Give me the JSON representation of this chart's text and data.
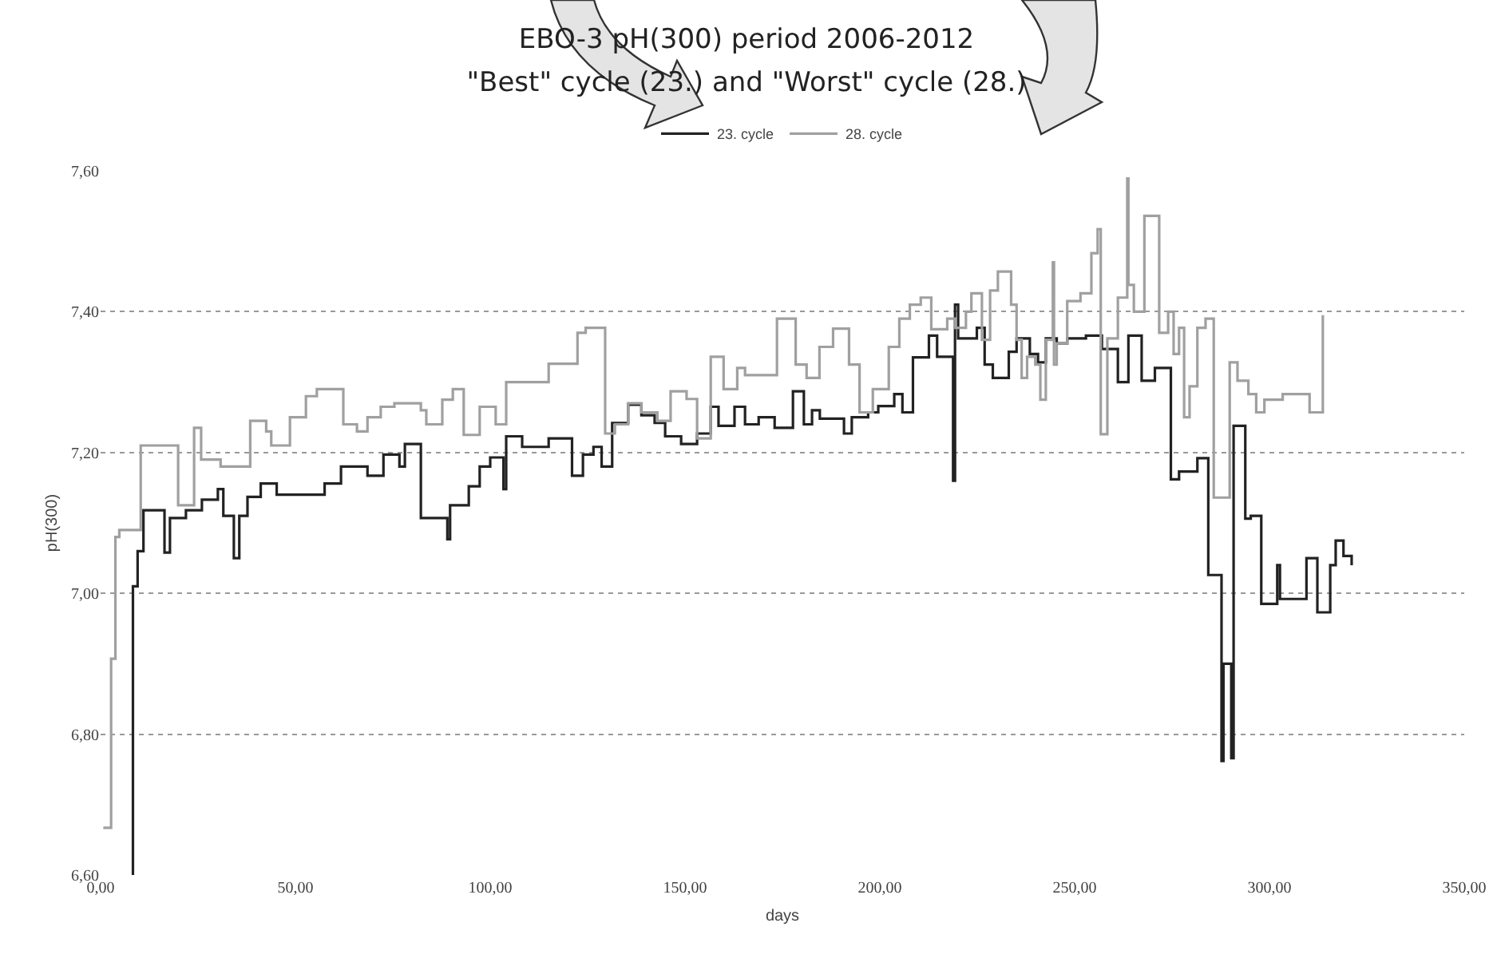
{
  "chart_data": {
    "type": "step",
    "title": "EBO-3  pH(300)  period 2006-2012",
    "subtitle": "\"Best\" cycle (23.) and \"Worst\" cycle (28.)",
    "xlabel": "days",
    "ylabel": "pH(300)",
    "xlim": [
      0,
      350
    ],
    "xticks": [
      {
        "value": 0,
        "label": "0,00"
      },
      {
        "value": 50,
        "label": "50,00"
      },
      {
        "value": 100,
        "label": "100,00"
      },
      {
        "value": 150,
        "label": "150,00"
      },
      {
        "value": 200,
        "label": "200,00"
      },
      {
        "value": 250,
        "label": "250,00"
      },
      {
        "value": 300,
        "label": "300,00"
      },
      {
        "value": 350,
        "label": "350,00"
      }
    ],
    "ylim": [
      6.6,
      7.6
    ],
    "yticks": [
      {
        "value": 6.6,
        "label": "6,60"
      },
      {
        "value": 6.8,
        "label": "6,80"
      },
      {
        "value": 7.0,
        "label": "7,00"
      },
      {
        "value": 7.2,
        "label": "7,20"
      },
      {
        "value": 7.4,
        "label": "7,40"
      },
      {
        "value": 7.6,
        "label": "7,60"
      }
    ],
    "grid": "y",
    "legend": "top",
    "line_style": "solid",
    "marker": "none",
    "series": [
      {
        "name": "23. cycle",
        "color": "#222222",
        "x": [
          8.2,
          8.3,
          9.5,
          11.0,
          16.4,
          17.8,
          21.9,
          26.0,
          30.1,
          31.5,
          34.2,
          35.6,
          37.7,
          41.1,
          45.2,
          57.5,
          61.7,
          68.5,
          72.6,
          76.7,
          78.1,
          82.2,
          89.0,
          89.7,
          94.5,
          97.3,
          100.0,
          103.4,
          104.1,
          108.2,
          115.0,
          121.0,
          123.8,
          126.5,
          128.6,
          131.3,
          135.4,
          138.8,
          142.2,
          144.9,
          149.0,
          153.1,
          156.6,
          158.6,
          162.7,
          165.4,
          168.9,
          173.0,
          177.7,
          180.5,
          182.6,
          184.6,
          190.8,
          192.8,
          197.0,
          199.6,
          203.7,
          205.8,
          208.5,
          212.6,
          214.7,
          218.8,
          219.3,
          220.1,
          224.9,
          226.9,
          229.0,
          233.1,
          235.1,
          238.5,
          240.6,
          242.6,
          245.4,
          248.1,
          252.9,
          257.0,
          261.1,
          263.8,
          267.2,
          270.6,
          274.7,
          276.8,
          281.5,
          284.3,
          287.7,
          288.2,
          290.2,
          290.8,
          293.8,
          295.2,
          297.9,
          302.0,
          302.7,
          309.5,
          312.3,
          315.6,
          317.0,
          319.0,
          321.1
        ],
        "values": [
          6.6,
          7.01,
          7.06,
          7.118,
          7.058,
          7.107,
          7.118,
          7.133,
          7.148,
          7.11,
          7.05,
          7.11,
          7.137,
          7.156,
          7.14,
          7.156,
          7.18,
          7.167,
          7.197,
          7.18,
          7.212,
          7.107,
          7.077,
          7.125,
          7.152,
          7.18,
          7.193,
          7.148,
          7.223,
          7.208,
          7.22,
          7.167,
          7.197,
          7.208,
          7.18,
          7.242,
          7.268,
          7.253,
          7.242,
          7.223,
          7.212,
          7.227,
          7.265,
          7.238,
          7.265,
          7.24,
          7.25,
          7.235,
          7.287,
          7.24,
          7.26,
          7.248,
          7.227,
          7.25,
          7.257,
          7.266,
          7.283,
          7.257,
          7.335,
          7.366,
          7.336,
          7.16,
          7.41,
          7.362,
          7.377,
          7.325,
          7.306,
          7.343,
          7.362,
          7.34,
          7.328,
          7.362,
          7.355,
          7.362,
          7.366,
          7.347,
          7.3,
          7.366,
          7.302,
          7.32,
          7.162,
          7.173,
          7.192,
          7.026,
          6.762,
          6.9,
          6.766,
          7.238,
          7.106,
          7.11,
          6.985,
          7.04,
          6.992,
          7.05,
          6.973,
          7.04,
          7.075,
          7.053,
          7.04
        ]
      },
      {
        "name": "28. cycle",
        "color": "#a0a0a0",
        "x": [
          0.7,
          2.7,
          3.8,
          4.8,
          10.3,
          19.9,
          24.0,
          25.8,
          30.8,
          38.4,
          42.5,
          43.8,
          48.6,
          52.7,
          55.5,
          62.3,
          65.8,
          68.5,
          71.9,
          75.4,
          82.2,
          83.6,
          87.7,
          90.4,
          93.2,
          97.3,
          101.4,
          104.1,
          115.0,
          122.4,
          124.5,
          129.5,
          132.0,
          135.4,
          138.8,
          142.9,
          146.3,
          150.4,
          153.1,
          156.6,
          159.9,
          163.4,
          165.4,
          173.6,
          178.4,
          181.2,
          184.5,
          188.0,
          192.1,
          194.8,
          198.2,
          202.3,
          205.0,
          207.7,
          210.5,
          213.2,
          217.3,
          219.4,
          222.1,
          223.5,
          226.2,
          228.3,
          230.3,
          233.7,
          235.1,
          236.4,
          237.8,
          239.9,
          241.2,
          242.6,
          244.4,
          244.7,
          245.4,
          248.1,
          251.5,
          254.3,
          255.9,
          256.7,
          258.4,
          261.1,
          263.5,
          263.8,
          265.2,
          267.9,
          271.7,
          274.0,
          275.4,
          276.8,
          278.1,
          279.5,
          281.5,
          283.6,
          285.7,
          289.8,
          291.8,
          294.6,
          296.6,
          298.7,
          303.4,
          310.3,
          313.7
        ],
        "values": [
          6.667,
          6.907,
          7.08,
          7.09,
          7.21,
          7.125,
          7.235,
          7.19,
          7.18,
          7.245,
          7.23,
          7.21,
          7.25,
          7.28,
          7.29,
          7.24,
          7.23,
          7.25,
          7.265,
          7.27,
          7.26,
          7.24,
          7.275,
          7.29,
          7.225,
          7.265,
          7.24,
          7.3,
          7.326,
          7.37,
          7.377,
          7.227,
          7.24,
          7.27,
          7.257,
          7.245,
          7.287,
          7.276,
          7.22,
          7.336,
          7.29,
          7.32,
          7.31,
          7.39,
          7.325,
          7.306,
          7.35,
          7.376,
          7.325,
          7.257,
          7.29,
          7.35,
          7.39,
          7.41,
          7.42,
          7.375,
          7.39,
          7.377,
          7.4,
          7.426,
          7.36,
          7.43,
          7.457,
          7.41,
          7.36,
          7.306,
          7.336,
          7.325,
          7.275,
          7.36,
          7.47,
          7.325,
          7.355,
          7.415,
          7.426,
          7.483,
          7.517,
          7.226,
          7.362,
          7.42,
          7.589,
          7.438,
          7.4,
          7.536,
          7.37,
          7.4,
          7.34,
          7.377,
          7.25,
          7.294,
          7.377,
          7.39,
          7.136,
          7.328,
          7.302,
          7.283,
          7.257,
          7.275,
          7.283,
          7.257,
          7.395
        ]
      }
    ]
  }
}
